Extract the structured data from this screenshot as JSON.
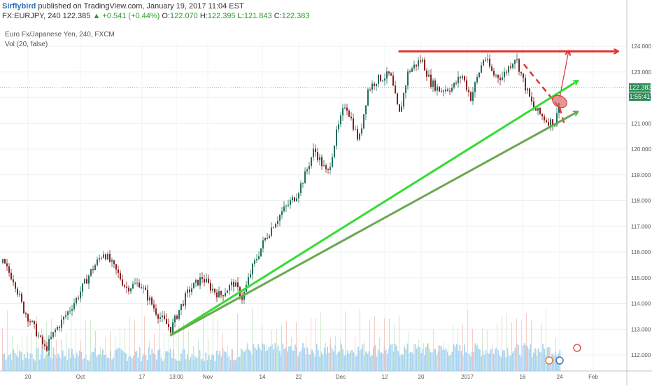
{
  "header": {
    "author": "Sirflybird",
    "published_text": "published on TradingView.com, January 19, 2017 11:04 EST",
    "symbol": "FX:EURJPY, 240",
    "last": "122.385",
    "change": "▲ +0.541 (+0.44%)",
    "o_label": "O:",
    "o_value": "122.070",
    "h_label": "H:",
    "h_value": "122.395",
    "l_label": "L:",
    "l_value": "121.843",
    "c_label": "C:",
    "c_value": "122.383"
  },
  "legend": {
    "series_title": "Euro Fx/Japanese Yen, 240, FXCM",
    "volume_title": "Vol (20, false)"
  },
  "price_scale": {
    "last_price": "122.383",
    "countdown": "1:55:41",
    "last_color": "#2e8b57",
    "countdown_color": "#2e8b57"
  },
  "chart_data": {
    "type": "candlestick",
    "title": "Euro Fx/Japanese Yen, 240, FXCM",
    "ylim": [
      111.65,
      124.45
    ],
    "y_ticks": [
      "124.000",
      "123.000",
      "122.000",
      "121.000",
      "120.000",
      "119.000",
      "118.000",
      "117.000",
      "116.000",
      "115.000",
      "114.000",
      "113.000",
      "112.000"
    ],
    "x_ticks": [
      "20",
      "Oct",
      "17",
      "13:00",
      "Nov",
      "14",
      "22",
      "Dec",
      "12",
      "20",
      "2017",
      "16",
      "24",
      "Feb"
    ],
    "close_path": [
      {
        "x": "Sep 16",
        "close": 115.7
      },
      {
        "x": "Sep 19",
        "close": 114.9
      },
      {
        "x": "Sep 21",
        "close": 113.8
      },
      {
        "x": "Sep 23",
        "close": 113.2
      },
      {
        "x": "Sep 26",
        "close": 112.2
      },
      {
        "x": "Sep 28",
        "close": 112.9
      },
      {
        "x": "Sep 30",
        "close": 113.4
      },
      {
        "x": "Oct 3",
        "close": 114.2
      },
      {
        "x": "Oct 6",
        "close": 115.2
      },
      {
        "x": "Oct 9",
        "close": 116.0
      },
      {
        "x": "Oct 12",
        "close": 115.2
      },
      {
        "x": "Oct 14",
        "close": 114.6
      },
      {
        "x": "Oct 17",
        "close": 114.8
      },
      {
        "x": "Oct 19",
        "close": 114.2
      },
      {
        "x": "Oct 21",
        "close": 113.6
      },
      {
        "x": "Oct 24",
        "close": 113.0
      },
      {
        "x": "Oct 26",
        "close": 113.8
      },
      {
        "x": "Oct 28",
        "close": 114.5
      },
      {
        "x": "Oct 31",
        "close": 115.0
      },
      {
        "x": "Nov 2",
        "close": 114.6
      },
      {
        "x": "Nov 4",
        "close": 114.3
      },
      {
        "x": "Nov 7",
        "close": 114.8
      },
      {
        "x": "Nov 9",
        "close": 114.2
      },
      {
        "x": "Nov 11",
        "close": 115.3
      },
      {
        "x": "Nov 14",
        "close": 116.5
      },
      {
        "x": "Nov 16",
        "close": 117.1
      },
      {
        "x": "Nov 18",
        "close": 117.6
      },
      {
        "x": "Nov 21",
        "close": 118.2
      },
      {
        "x": "Nov 23",
        "close": 119.0
      },
      {
        "x": "Nov 25",
        "close": 120.0
      },
      {
        "x": "Nov 28",
        "close": 119.0
      },
      {
        "x": "Nov 30",
        "close": 120.6
      },
      {
        "x": "Dec 2",
        "close": 121.8
      },
      {
        "x": "Dec 5",
        "close": 120.3
      },
      {
        "x": "Dec 7",
        "close": 122.3
      },
      {
        "x": "Dec 9",
        "close": 122.7
      },
      {
        "x": "Dec 12",
        "close": 122.9
      },
      {
        "x": "Dec 14",
        "close": 121.3
      },
      {
        "x": "Dec 16",
        "close": 123.0
      },
      {
        "x": "Dec 19",
        "close": 123.5
      },
      {
        "x": "Dec 21",
        "close": 122.6
      },
      {
        "x": "Dec 23",
        "close": 122.3
      },
      {
        "x": "Dec 26",
        "close": 122.4
      },
      {
        "x": "Dec 28",
        "close": 122.9
      },
      {
        "x": "Dec 30",
        "close": 122.0
      },
      {
        "x": "Jan 2",
        "close": 123.6
      },
      {
        "x": "Jan 4",
        "close": 122.9
      },
      {
        "x": "Jan 6",
        "close": 122.8
      },
      {
        "x": "Jan 9",
        "close": 123.6
      },
      {
        "x": "Jan 11",
        "close": 122.5
      },
      {
        "x": "Jan 13",
        "close": 121.6
      },
      {
        "x": "Jan 16",
        "close": 121.1
      },
      {
        "x": "Jan 18",
        "close": 121.0
      },
      {
        "x": "Jan 19",
        "close": 122.38
      }
    ],
    "annotations": [
      {
        "kind": "horizontal_arrow",
        "color": "#e53030",
        "from": {
          "x": "Dec 14",
          "y": 123.8
        },
        "to": {
          "x": "Feb 1",
          "y": 123.8
        }
      },
      {
        "kind": "arrow",
        "color": "#e53030",
        "from": {
          "x": "Jan 19",
          "y": 122.0
        },
        "to": {
          "x": "Jan 21",
          "y": 123.8
        }
      },
      {
        "kind": "dashed_line",
        "color": "#e53030",
        "from": {
          "x": "Jan 11",
          "y": 123.3
        },
        "to": {
          "x": "Jan 19",
          "y": 121.6
        }
      },
      {
        "kind": "dashed_line",
        "color": "#e53030",
        "from": {
          "x": "Jan 19",
          "y": 121.6
        },
        "to": {
          "x": "Jan 20",
          "y": 121.0
        }
      },
      {
        "kind": "arrow",
        "color": "#33dd33",
        "from": {
          "x": "Oct 24",
          "y": 112.75
        },
        "to": {
          "x": "Jan 23",
          "y": 122.65
        }
      },
      {
        "kind": "arrow",
        "color": "#6aa84f",
        "from": {
          "x": "Oct 24",
          "y": 112.75
        },
        "to": {
          "x": "Jan 23",
          "y": 121.45
        }
      },
      {
        "kind": "ellipse",
        "color": "#e06666",
        "center": {
          "x": "Jan 19",
          "y": 121.85
        }
      }
    ]
  }
}
